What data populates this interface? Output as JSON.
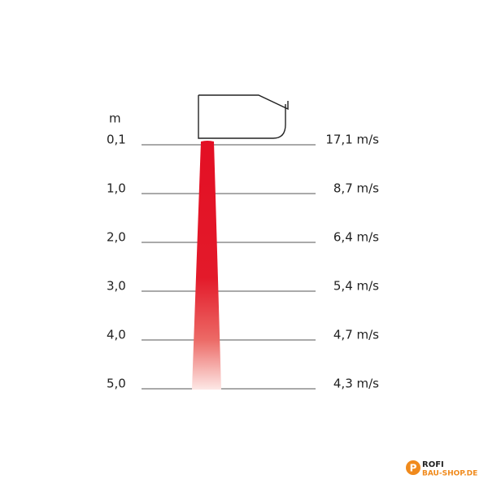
{
  "unit": "m",
  "rows": [
    {
      "distance": "0,1",
      "velocity": "17,1 m/s"
    },
    {
      "distance": "1,0",
      "velocity": "8,7 m/s"
    },
    {
      "distance": "2,0",
      "velocity": "6,4 m/s"
    },
    {
      "distance": "3,0",
      "velocity": "5,4 m/s"
    },
    {
      "distance": "4,0",
      "velocity": "4,7 m/s"
    },
    {
      "distance": "5,0",
      "velocity": "4,3 m/s"
    }
  ],
  "logo": {
    "mark": "P",
    "name": "ROFI",
    "domain": "BAU-SHOP.DE"
  }
}
